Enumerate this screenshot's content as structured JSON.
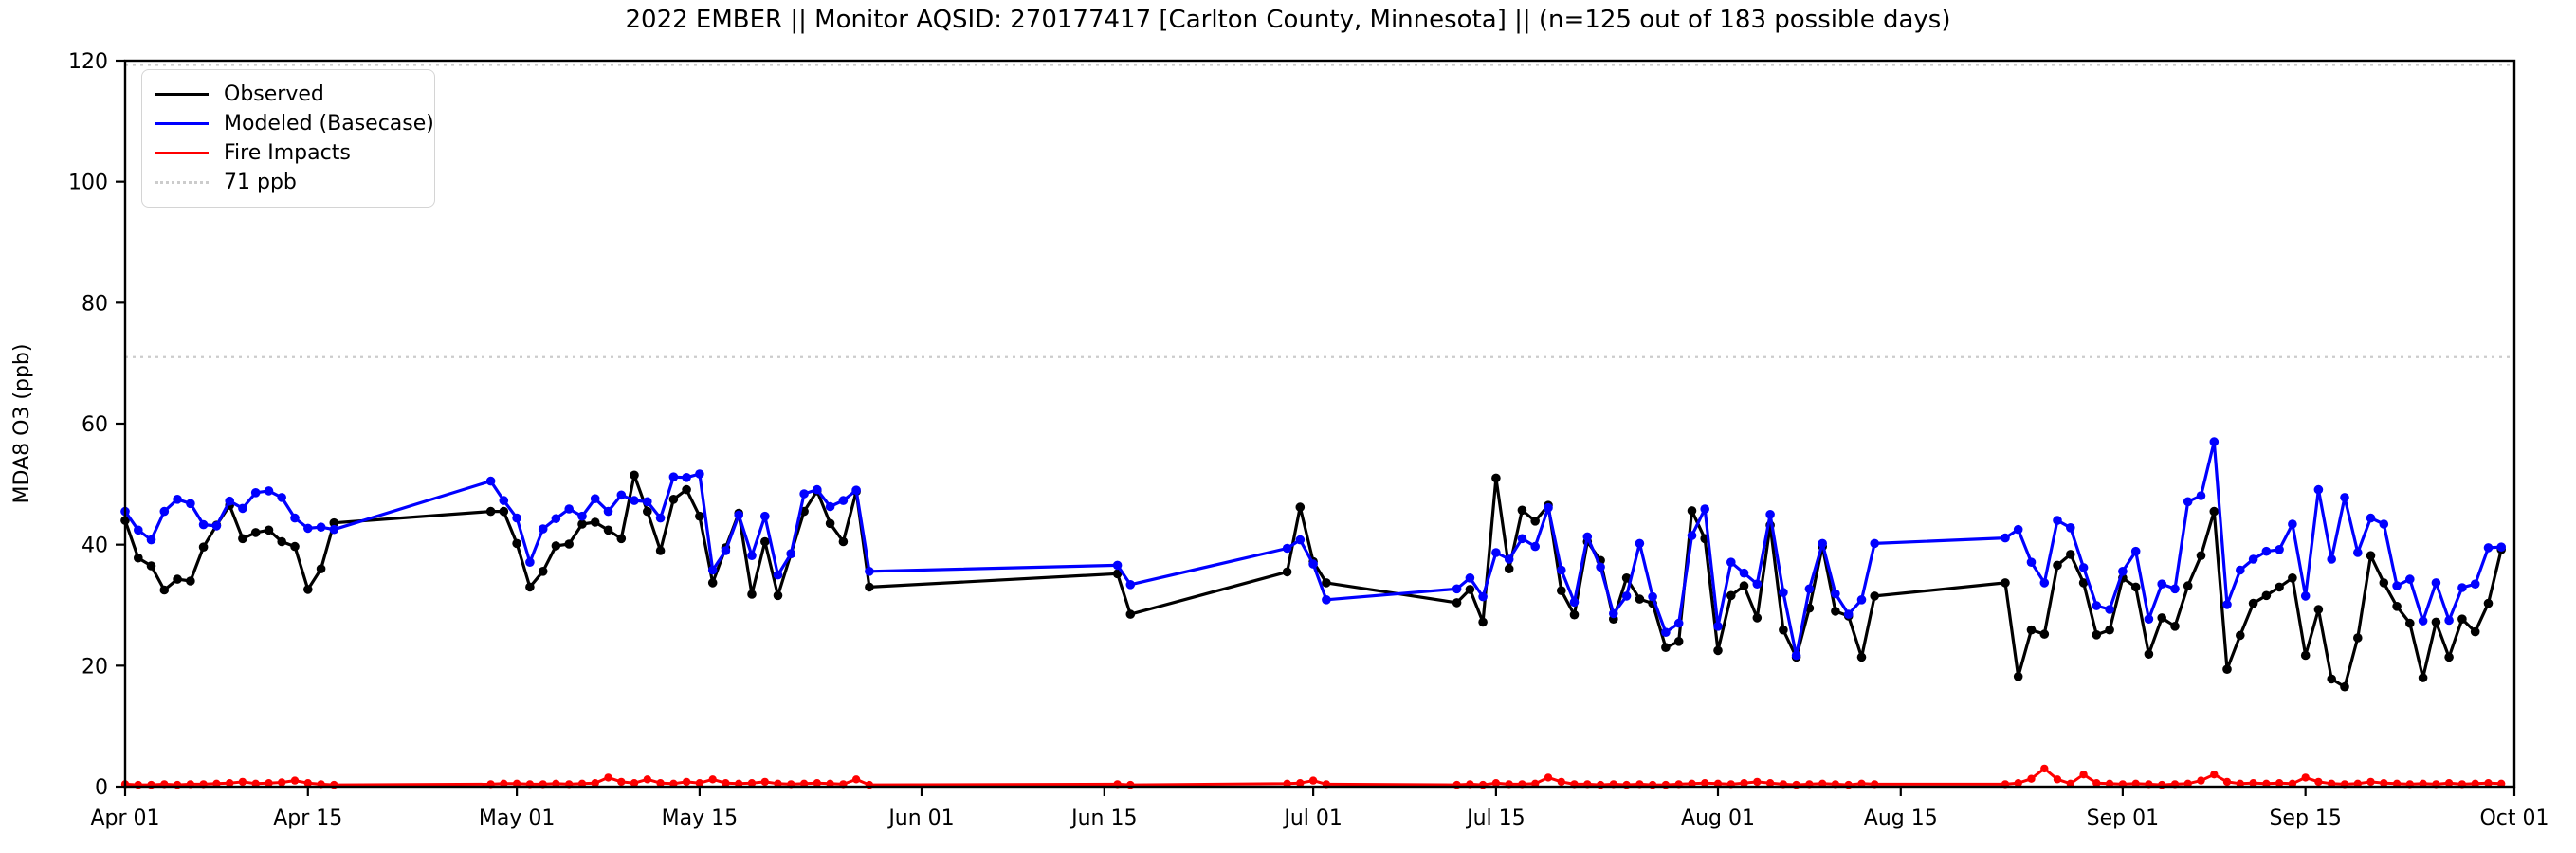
{
  "figure": {
    "title": "2022 EMBER || Monitor AQSID: 270177417 [Carlton County, Minnesota] || (n=125 out of 183 possible days)",
    "background_color": "#ffffff",
    "y_axis": {
      "label": "MDA8 O3 (ppb)",
      "ticks": [
        0,
        20,
        40,
        60,
        80,
        100,
        120
      ],
      "min": 0,
      "max": 120
    },
    "x_axis": {
      "ticks": [
        {
          "label": "Apr 01",
          "day": 0
        },
        {
          "label": "Apr 15",
          "day": 14
        },
        {
          "label": "May 01",
          "day": 30
        },
        {
          "label": "May 15",
          "day": 44
        },
        {
          "label": "Jun 01",
          "day": 61
        },
        {
          "label": "Jun 15",
          "day": 75
        },
        {
          "label": "Jul 01",
          "day": 91
        },
        {
          "label": "Jul 15",
          "day": 105
        },
        {
          "label": "Aug 01",
          "day": 122
        },
        {
          "label": "Aug 15",
          "day": 136
        },
        {
          "label": "Sep 01",
          "day": 153
        },
        {
          "label": "Sep 15",
          "day": 167
        },
        {
          "label": "Oct 01",
          "day": 183
        }
      ],
      "total_days": 183
    },
    "legend": [
      {
        "label": "Observed",
        "color": "#000000",
        "style": "solid"
      },
      {
        "label": "Modeled (Basecase)",
        "color": "#0000ff",
        "style": "solid"
      },
      {
        "label": "Fire Impacts",
        "color": "#ff0000",
        "style": "solid"
      },
      {
        "label": "71 ppb",
        "color": "#cccccc",
        "style": "dotted"
      }
    ],
    "reference_lines": [
      {
        "name": "threshold-71ppb",
        "value": 71,
        "color": "#cccccc",
        "style": "dotted"
      },
      {
        "name": "top-dotted-line",
        "value": 119.3,
        "color": "#cccccc",
        "style": "dotted"
      }
    ]
  },
  "chart_data": {
    "type": "line",
    "title": "2022 EMBER || Monitor AQSID: 270177417 [Carlton County, Minnesota] || (n=125 out of 183 possible days)",
    "xlabel": "",
    "ylabel": "MDA8 O3 (ppb)",
    "ylim": [
      0,
      120
    ],
    "x_range_days": [
      "Apr 01 2022",
      "Oct 01 2022"
    ],
    "n_days_with_data": 125,
    "n_possible_days": 183,
    "threshold_ppb": 71,
    "grid": false,
    "legend_position": "upper-left",
    "dates": [
      "04-01",
      "04-02",
      "04-03",
      "04-04",
      "04-05",
      "04-06",
      "04-07",
      "04-08",
      "04-09",
      "04-10",
      "04-11",
      "04-12",
      "04-13",
      "04-14",
      "04-15",
      "04-16",
      "04-17",
      "04-29",
      "04-30",
      "05-01",
      "05-02",
      "05-03",
      "05-04",
      "05-05",
      "05-06",
      "05-07",
      "05-08",
      "05-09",
      "05-10",
      "05-11",
      "05-12",
      "05-13",
      "05-14",
      "05-15",
      "05-16",
      "05-17",
      "05-18",
      "05-19",
      "05-20",
      "05-21",
      "05-22",
      "05-23",
      "05-24",
      "05-25",
      "05-26",
      "05-27",
      "05-28",
      "06-16",
      "06-17",
      "06-29",
      "06-30",
      "07-01",
      "07-02",
      "07-12",
      "07-13",
      "07-14",
      "07-15",
      "07-16",
      "07-17",
      "07-18",
      "07-19",
      "07-20",
      "07-21",
      "07-22",
      "07-23",
      "07-24",
      "07-25",
      "07-26",
      "07-27",
      "07-28",
      "07-29",
      "07-30",
      "07-31",
      "08-01",
      "08-02",
      "08-03",
      "08-04",
      "08-05",
      "08-06",
      "08-07",
      "08-08",
      "08-09",
      "08-10",
      "08-11",
      "08-12",
      "08-13",
      "08-23",
      "08-24",
      "08-25",
      "08-26",
      "08-27",
      "08-28",
      "08-29",
      "08-30",
      "08-31",
      "09-01",
      "09-02",
      "09-03",
      "09-04",
      "09-05",
      "09-06",
      "09-07",
      "09-08",
      "09-09",
      "09-10",
      "09-11",
      "09-12",
      "09-13",
      "09-14",
      "09-15",
      "09-16",
      "09-17",
      "09-18",
      "09-19",
      "09-20",
      "09-21",
      "09-22",
      "09-23",
      "09-24",
      "09-25",
      "09-26",
      "09-27",
      "09-28",
      "09-29",
      "09-30"
    ],
    "series": [
      {
        "name": "Observed",
        "color": "#000000",
        "values": [
          44,
          37.8,
          36.5,
          32.5,
          34.3,
          34,
          39.6,
          43.2,
          46.5,
          41,
          42,
          42.4,
          40.5,
          39.7,
          32.6,
          36,
          43.6,
          45.5,
          45.5,
          40.2,
          33,
          35.6,
          39.8,
          40.1,
          43.4,
          43.7,
          42.4,
          41,
          51.5,
          45.5,
          39,
          47.5,
          49.1,
          44.7,
          33.7,
          39.5,
          45.2,
          31.8,
          40.5,
          31.6,
          38.5,
          45.5,
          48.9,
          43.5,
          40.5,
          48.8,
          33,
          35.2,
          28.5,
          35.5,
          46.2,
          37.2,
          33.7,
          30.4,
          32.6,
          27.2,
          51,
          36,
          45.7,
          43.9,
          46.5,
          32.4,
          28.4,
          40.5,
          37.4,
          27.7,
          34.5,
          31,
          30.3,
          23,
          24,
          45.6,
          41,
          22.5,
          31.6,
          33.2,
          27.9,
          43.2,
          25.9,
          21.4,
          29.5,
          39.7,
          29,
          28.2,
          21.4,
          31.5,
          33.7,
          18.2,
          25.9,
          25.2,
          36.6,
          38.4,
          33.7,
          25.1,
          25.9,
          34.5,
          33,
          21.9,
          27.9,
          26.5,
          33.2,
          38.2,
          45.5,
          19.4,
          25,
          30.3,
          31.6,
          33,
          34.5,
          21.7,
          29.3,
          17.8,
          16.5,
          24.6,
          38.2,
          33.7,
          29.8,
          27,
          18,
          27.2,
          21.4,
          27.7,
          25.6,
          30.3,
          39.2
        ]
      },
      {
        "name": "Modeled (Basecase)",
        "color": "#0000ff",
        "values": [
          45.5,
          42.4,
          40.8,
          45.5,
          47.5,
          46.8,
          43.3,
          43.1,
          47.2,
          46,
          48.6,
          48.9,
          47.8,
          44.4,
          42.7,
          42.9,
          42.5,
          50.5,
          47.3,
          44.4,
          37.1,
          42.6,
          44.3,
          45.9,
          44.7,
          47.6,
          45.5,
          48.2,
          47.3,
          47.1,
          44.4,
          51.2,
          51.1,
          51.7,
          35.8,
          39,
          44.9,
          38.2,
          44.7,
          35,
          38.5,
          48.4,
          49.1,
          46.3,
          47.3,
          49,
          35.6,
          36.6,
          33.4,
          39.4,
          40.8,
          36.8,
          30.9,
          32.7,
          34.5,
          31.4,
          38.7,
          37.6,
          41,
          39.7,
          46.1,
          35.8,
          30.5,
          41.3,
          36.3,
          28.6,
          31.5,
          40.2,
          31.4,
          25.5,
          27,
          41.5,
          45.9,
          26.5,
          37.1,
          35.3,
          33.5,
          45,
          32.1,
          21.7,
          32.7,
          40.2,
          31.9,
          28.5,
          30.9,
          40.2,
          41.1,
          42.5,
          37.1,
          33.7,
          44,
          42.8,
          36.2,
          29.9,
          29.3,
          35.6,
          38.9,
          27.7,
          33.5,
          32.7,
          47.1,
          48.1,
          57,
          30.1,
          35.8,
          37.6,
          38.9,
          39.2,
          43.4,
          31.5,
          49.1,
          37.6,
          47.8,
          38.7,
          44.4,
          43.4,
          33.2,
          34.3,
          27.4,
          33.7,
          27.5,
          32.9,
          33.5,
          39.5,
          39.6
        ]
      },
      {
        "name": "Fire Impacts",
        "color": "#ff0000",
        "values": [
          0.4,
          0.3,
          0.3,
          0.4,
          0.3,
          0.4,
          0.4,
          0.5,
          0.6,
          0.8,
          0.5,
          0.6,
          0.7,
          1.0,
          0.6,
          0.4,
          0.3,
          0.4,
          0.5,
          0.5,
          0.4,
          0.4,
          0.5,
          0.4,
          0.5,
          0.6,
          1.5,
          0.8,
          0.6,
          1.2,
          0.6,
          0.5,
          0.8,
          0.6,
          1.2,
          0.6,
          0.5,
          0.6,
          0.8,
          0.5,
          0.4,
          0.5,
          0.6,
          0.5,
          0.4,
          1.2,
          0.3,
          0.4,
          0.3,
          0.5,
          0.6,
          1.0,
          0.4,
          0.3,
          0.4,
          0.3,
          0.6,
          0.4,
          0.4,
          0.5,
          1.5,
          0.8,
          0.4,
          0.4,
          0.3,
          0.4,
          0.3,
          0.4,
          0.3,
          0.3,
          0.4,
          0.5,
          0.6,
          0.5,
          0.4,
          0.6,
          0.8,
          0.6,
          0.4,
          0.3,
          0.4,
          0.5,
          0.4,
          0.3,
          0.5,
          0.4,
          0.4,
          0.6,
          1.3,
          3.0,
          1.2,
          0.5,
          2.0,
          0.6,
          0.5,
          0.4,
          0.5,
          0.4,
          0.3,
          0.4,
          0.5,
          1.0,
          2.0,
          0.8,
          0.5,
          0.6,
          0.5,
          0.6,
          0.5,
          1.5,
          0.8,
          0.5,
          0.4,
          0.5,
          0.8,
          0.6,
          0.5,
          0.4,
          0.5,
          0.4,
          0.6,
          0.4,
          0.5,
          0.6,
          0.5
        ]
      }
    ]
  }
}
